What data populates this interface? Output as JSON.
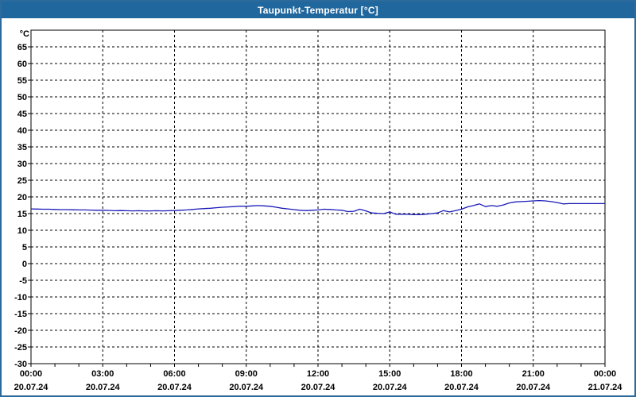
{
  "window": {
    "title": "Taupunkt-Temperatur [°C]"
  },
  "colors": {
    "titlebar_bg": "#20679e",
    "titlebar_text": "#ffffff",
    "window_border": "#2b6a9b",
    "plot_bg": "#ffffff",
    "axis": "#000000",
    "grid": "#000000",
    "line": "#1a1ab8",
    "label_text": "#000000"
  },
  "chart_data": {
    "type": "line",
    "title": "Taupunkt-Temperatur [°C]",
    "ylabel": "°C",
    "xlabel": "",
    "ylim": [
      -30,
      70
    ],
    "yticks": [
      65,
      60,
      55,
      50,
      45,
      40,
      35,
      30,
      25,
      20,
      15,
      10,
      5,
      0,
      -5,
      -10,
      -15,
      -20,
      -25,
      -30
    ],
    "xlim_hours": [
      0,
      24
    ],
    "minor_xtick_every_hours": 1,
    "grid": "dashed",
    "legend_position": "none",
    "xticks": [
      {
        "hour": 0,
        "time": "00:00",
        "date": "20.07.24"
      },
      {
        "hour": 3,
        "time": "03:00",
        "date": "20.07.24"
      },
      {
        "hour": 6,
        "time": "06:00",
        "date": "20.07.24"
      },
      {
        "hour": 9,
        "time": "09:00",
        "date": "20.07.24"
      },
      {
        "hour": 12,
        "time": "12:00",
        "date": "20.07.24"
      },
      {
        "hour": 15,
        "time": "15:00",
        "date": "20.07.24"
      },
      {
        "hour": 18,
        "time": "18:00",
        "date": "20.07.24"
      },
      {
        "hour": 21,
        "time": "21:00",
        "date": "20.07.24"
      },
      {
        "hour": 24,
        "time": "00:00",
        "date": "21.07.24"
      }
    ],
    "series": [
      {
        "name": "Taupunkt-Temperatur",
        "x_hours_start": 0,
        "x_hours_step": 0.25,
        "values": [
          16.4,
          16.35,
          16.3,
          16.3,
          16.25,
          16.2,
          16.2,
          16.15,
          16.1,
          16.1,
          16.05,
          16.0,
          16.0,
          15.95,
          15.85,
          15.9,
          15.85,
          15.8,
          15.85,
          15.8,
          15.8,
          15.85,
          15.8,
          15.85,
          15.9,
          16.0,
          16.1,
          16.25,
          16.4,
          16.5,
          16.6,
          16.75,
          16.9,
          17.0,
          17.1,
          17.25,
          17.2,
          17.3,
          17.4,
          17.3,
          17.2,
          16.9,
          16.6,
          16.4,
          16.2,
          16.0,
          15.9,
          16.0,
          16.1,
          16.3,
          16.25,
          16.1,
          16.0,
          15.6,
          15.7,
          16.3,
          15.8,
          15.2,
          15.1,
          15.0,
          15.5,
          14.8,
          14.8,
          14.8,
          14.7,
          14.7,
          14.8,
          15.0,
          15.2,
          15.9,
          15.5,
          15.9,
          16.3,
          17.0,
          17.4,
          17.9,
          17.1,
          17.4,
          17.2,
          17.6,
          18.2,
          18.5,
          18.6,
          18.7,
          18.8,
          18.9,
          18.8,
          18.6,
          18.3,
          17.9,
          18.0,
          18.0,
          18.0,
          18.0,
          18.0,
          18.0,
          18.0
        ]
      }
    ]
  }
}
